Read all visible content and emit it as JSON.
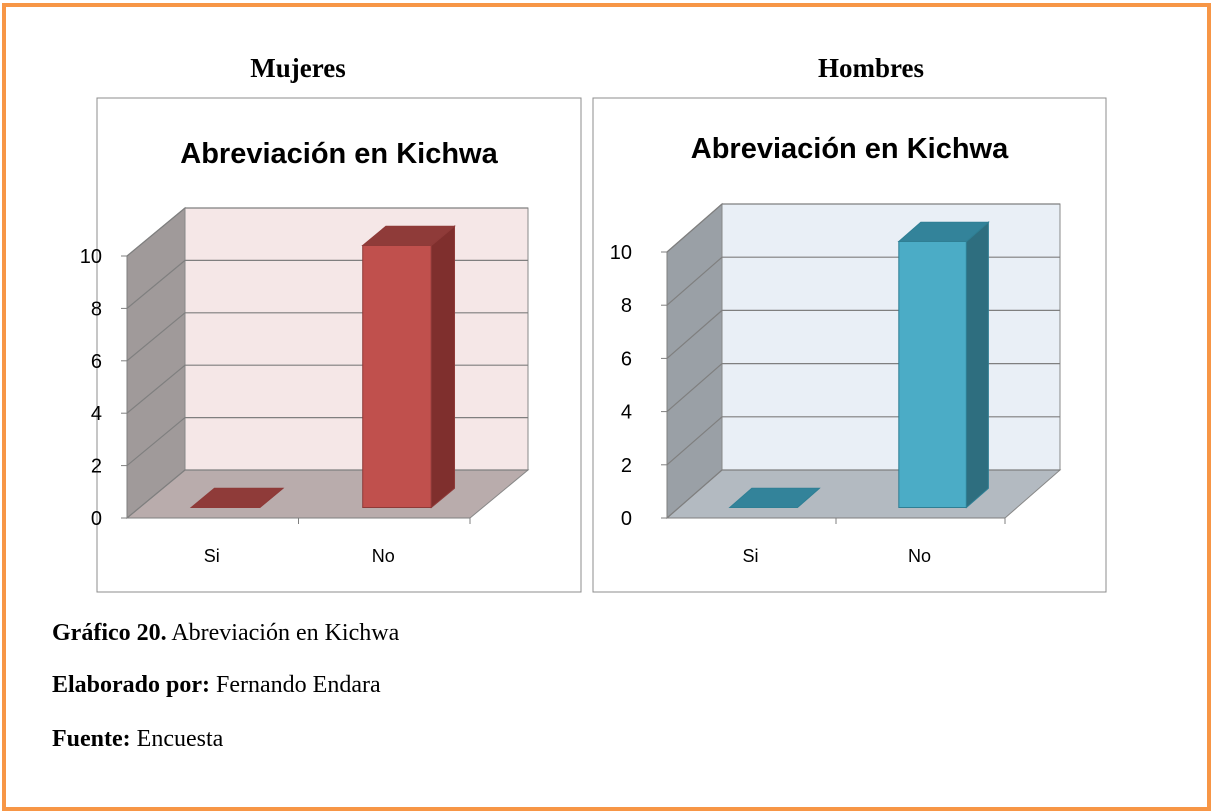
{
  "headings": [
    "Mujeres",
    "Hombres"
  ],
  "chart_data": [
    {
      "type": "bar",
      "title": "Abreviación en Kichwa",
      "categories": [
        "Si",
        "No"
      ],
      "values": [
        0,
        10
      ],
      "color": "#c0504d",
      "ylim": [
        0,
        10
      ],
      "yticks": [
        0,
        2,
        4,
        6,
        8,
        10
      ],
      "grid": true
    },
    {
      "type": "bar",
      "title": "Abreviación en Kichwa",
      "categories": [
        "Si",
        "No"
      ],
      "values": [
        0,
        10
      ],
      "color": "#4bacc6",
      "ylim": [
        0,
        10
      ],
      "yticks": [
        0,
        2,
        4,
        6,
        8,
        10
      ],
      "grid": true
    }
  ],
  "caption": [
    {
      "label": "Gráfico 20.",
      "text": "Abreviación en Kichwa"
    },
    {
      "label": "Elaborado por:",
      "text": "Fernando Endara"
    },
    {
      "label": "Fuente:",
      "text": "Encuesta"
    }
  ]
}
